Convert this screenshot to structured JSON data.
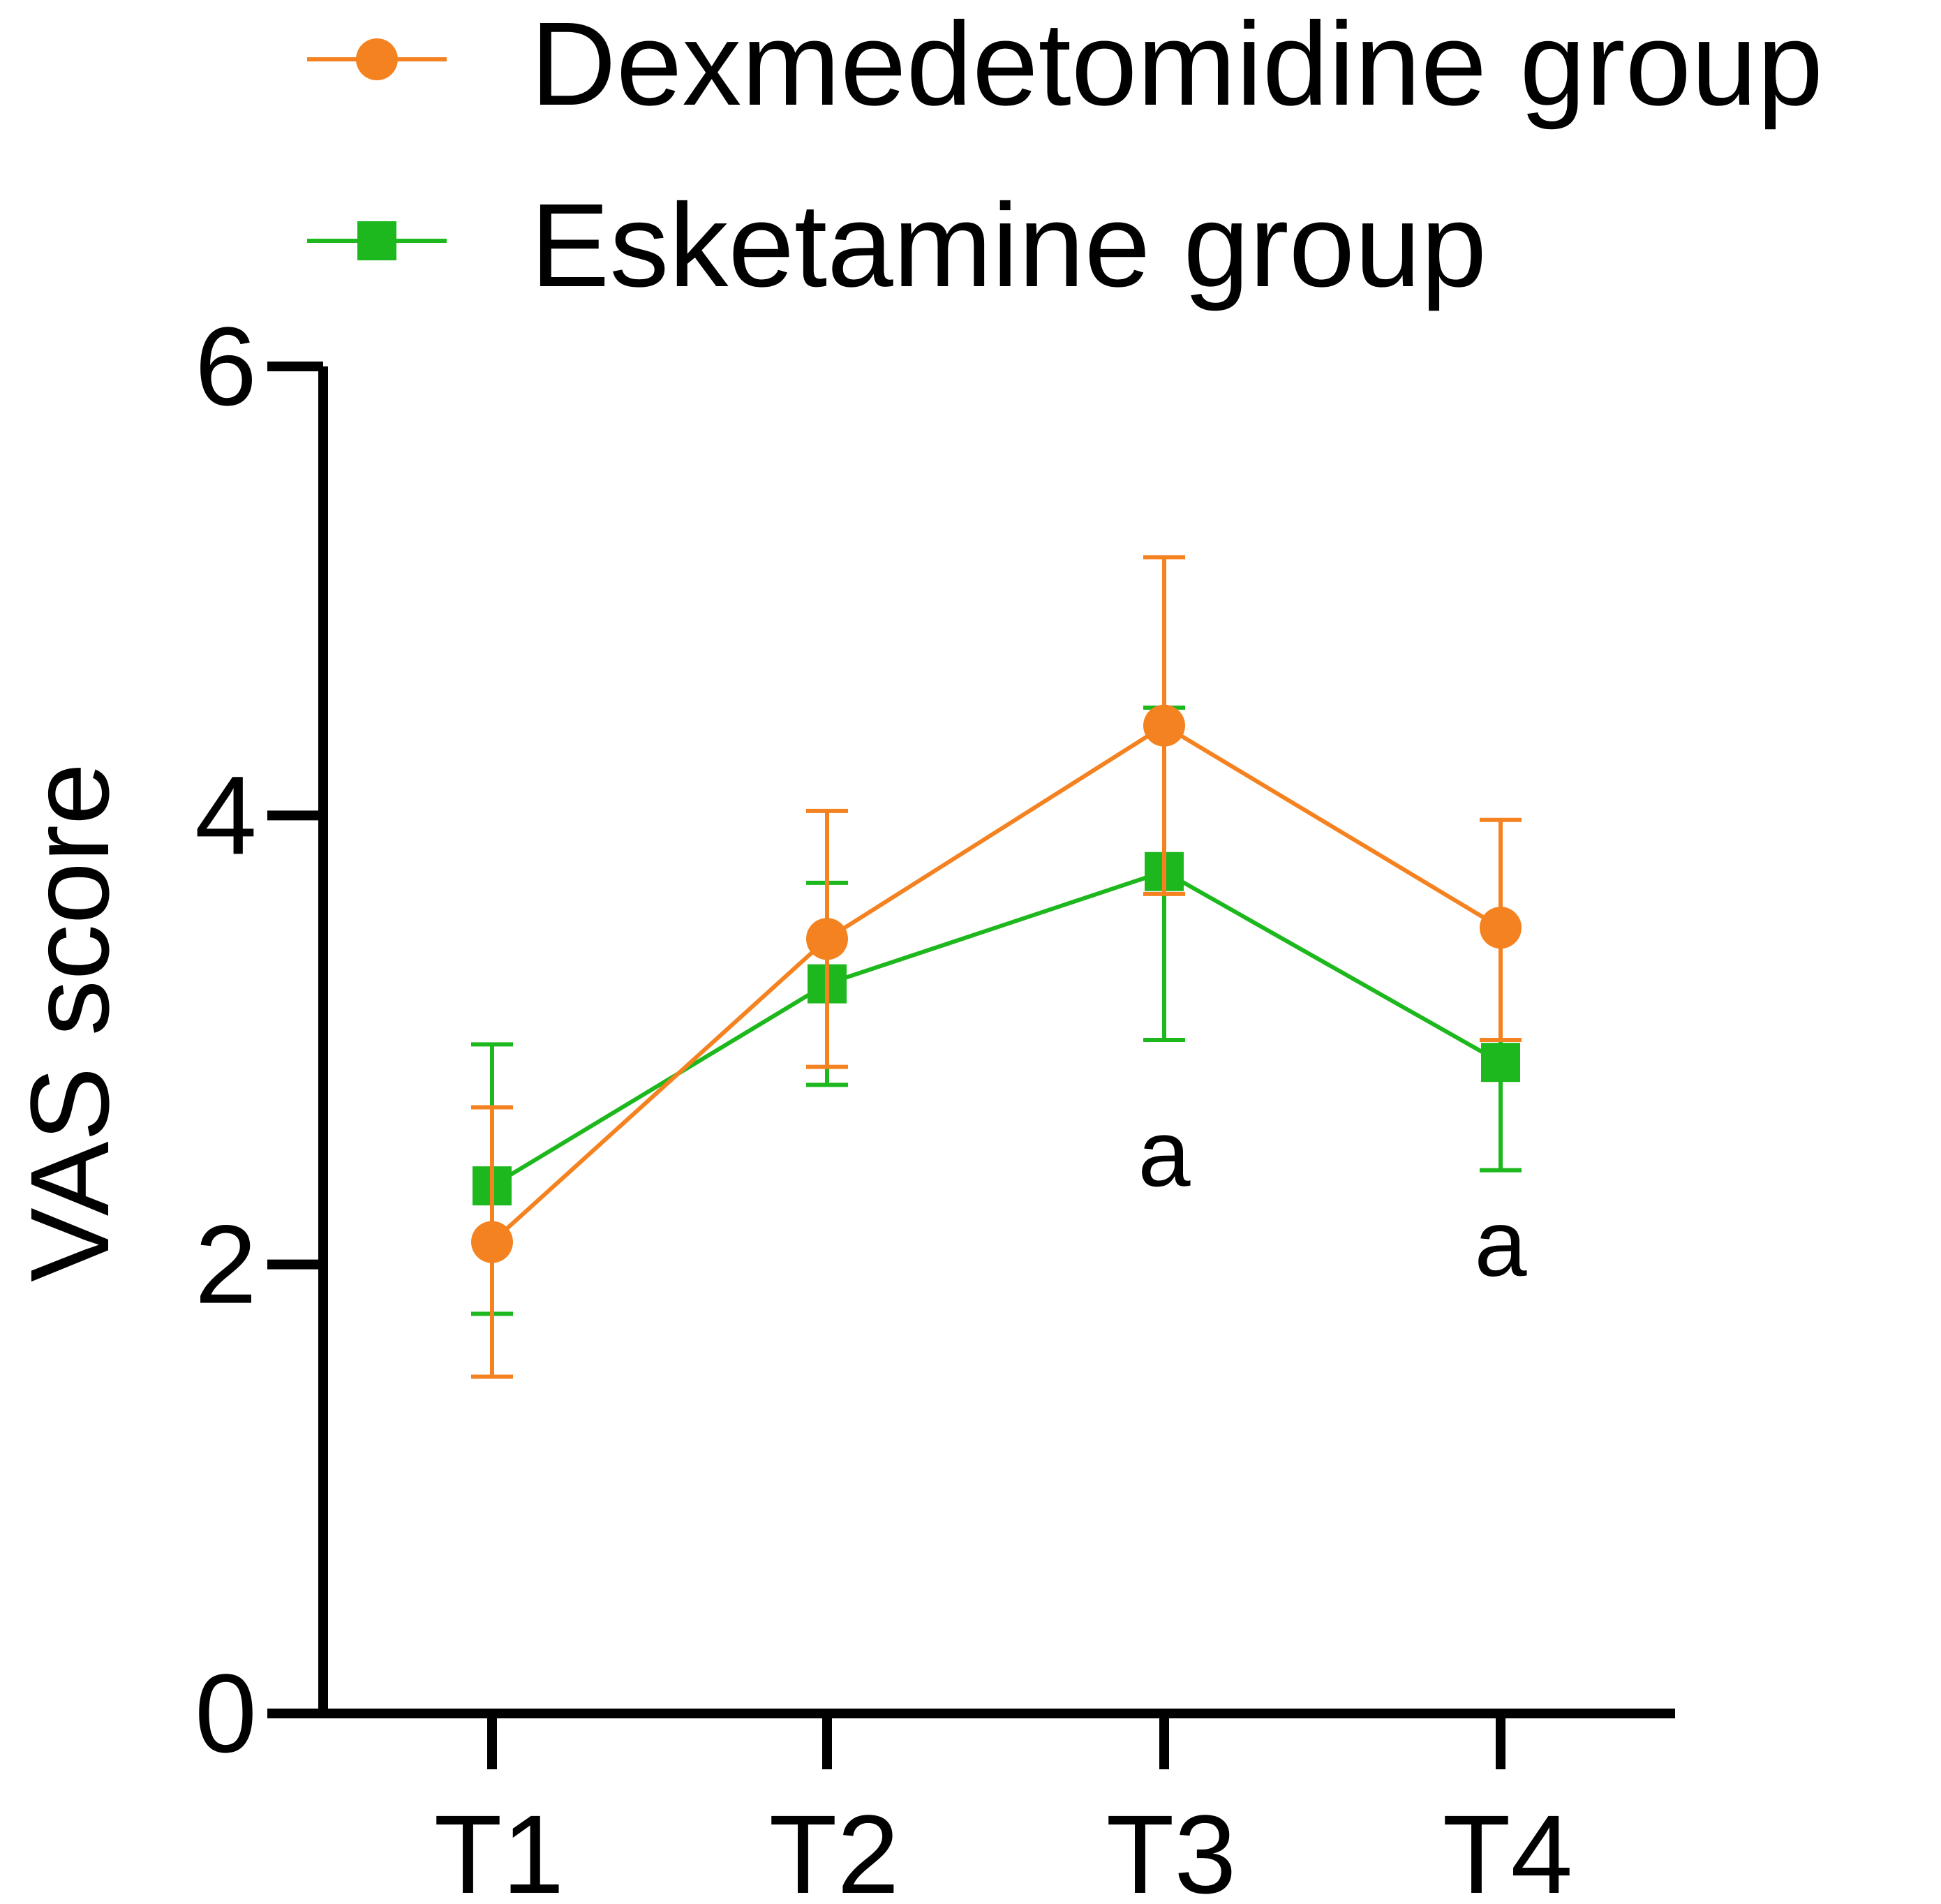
{
  "chart_data": {
    "type": "line",
    "categories": [
      "T1",
      "T2",
      "T3",
      "T4"
    ],
    "ylabel": "VAS score",
    "xlabel": "",
    "ylim": [
      0,
      6
    ],
    "yticks": [
      "0",
      "2",
      "4",
      "6"
    ],
    "grid": false,
    "legend_position": "top",
    "series": [
      {
        "name": "Dexmedetomidine group",
        "color": "#F58220",
        "marker": "circle",
        "values": [
          2.1,
          3.45,
          4.4,
          3.5
        ],
        "error_low": [
          1.5,
          2.88,
          3.65,
          3.0
        ],
        "error_high": [
          2.7,
          4.02,
          5.15,
          3.98
        ]
      },
      {
        "name": "Esketamine group",
        "color": "#1DB81D",
        "marker": "square",
        "values": [
          2.35,
          3.25,
          3.75,
          2.9
        ],
        "error_low": [
          1.78,
          2.8,
          3.0,
          2.42
        ],
        "error_high": [
          2.98,
          3.7,
          4.48,
          3.0
        ]
      }
    ],
    "annotations": [
      {
        "category": "T3",
        "y": 2.35,
        "text": "a"
      },
      {
        "category": "T4",
        "y": 1.95,
        "text": "a"
      }
    ]
  }
}
